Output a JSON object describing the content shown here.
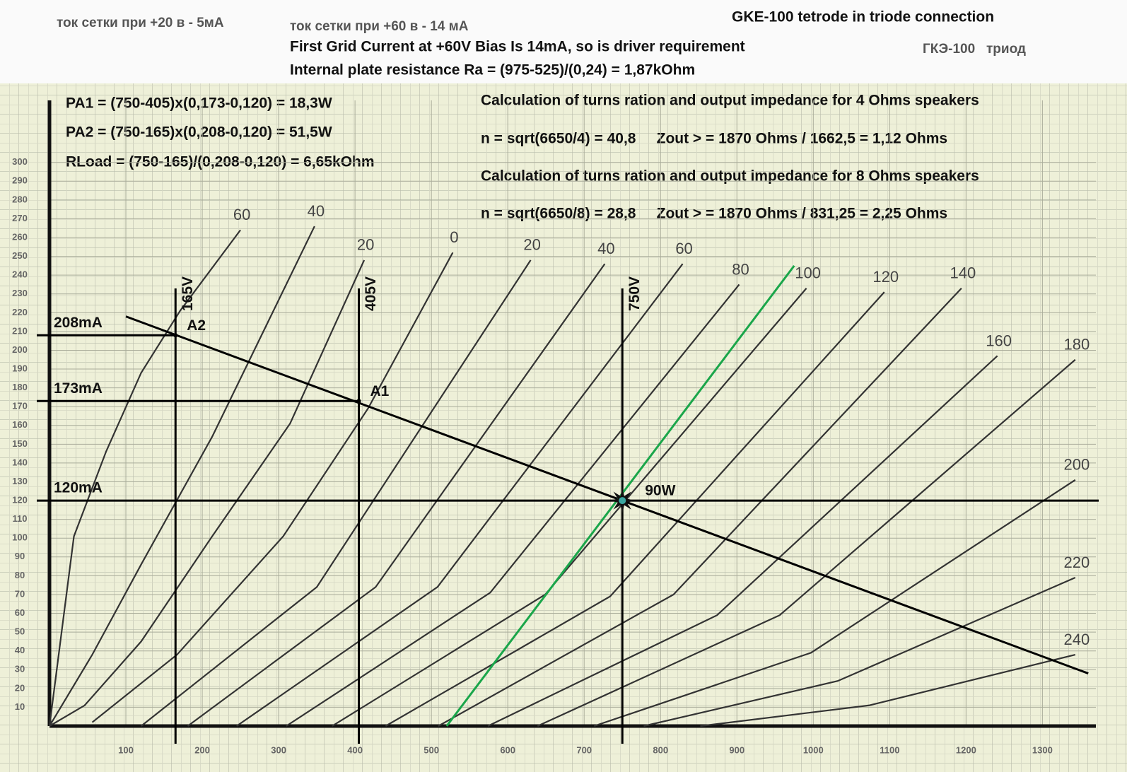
{
  "chart_data": {
    "type": "line",
    "title": "GKE-100 tetrode in triode connection",
    "annotations": [
      "ток сетки при +20 в - 5мА",
      "ток сетки при +60 в - 14 мА",
      "First Grid Current at +60V Bias Is 14mA, so is driver requirement",
      "ГКЭ-100   триод",
      "Internal plate resistance Ra = (975-525)/(0,24) = 1,87kOhm",
      "PA1 = (750-405)x(0,173-0,120) = 18,3W",
      "PA2 = (750-165)x(0,208-0,120) = 51,5W",
      "RLoad = (750-165)/(0,208-0,120) = 6,65kOhm",
      "Calculation of turns ration and output impedance for 4 Ohms speakers",
      "n = sqrt(6650/4) = 40,8     Zout > = 1870 Ohms / 1662,5 = 1,12 Ohms",
      "Calculation of turns ration and output impedance for 8 Ohms speakers",
      "n = sqrt(6650/8) = 28,8     Zout > = 1870 Ohms / 831,25 = 2,25 Ohms"
    ],
    "xlim": [
      0,
      1370
    ],
    "ylim": [
      0,
      333
    ],
    "xticks": [
      100,
      200,
      300,
      400,
      500,
      600,
      700,
      800,
      900,
      1000,
      1100,
      1200,
      1300
    ],
    "yticks": [
      10,
      20,
      30,
      40,
      50,
      60,
      70,
      80,
      90,
      100,
      110,
      120,
      130,
      140,
      150,
      160,
      170,
      180,
      190,
      200,
      210,
      220,
      230,
      240,
      250,
      260,
      270,
      280,
      290,
      300
    ],
    "grid": true,
    "series": [
      {
        "name": "60",
        "color": "#333333",
        "x": [
          0,
          32,
          74,
          120,
          171,
          250
        ],
        "values": [
          0,
          101,
          146,
          188,
          221,
          264
        ]
      },
      {
        "name": "40",
        "color": "#333333",
        "x": [
          0,
          56,
          120,
          213,
          347
        ],
        "values": [
          0,
          38,
          86,
          154,
          266
        ]
      },
      {
        "name": "20",
        "color": "#333333",
        "x": [
          0,
          46,
          120,
          213,
          315,
          412
        ],
        "values": [
          0,
          11,
          45,
          101,
          161,
          248
        ]
      },
      {
        "name": "0",
        "color": "#333333",
        "x": [
          56,
          167,
          306,
          417,
          528
        ],
        "values": [
          2,
          38,
          101,
          169,
          252
        ]
      },
      {
        "name": "20",
        "color": "#333333",
        "x": [
          120,
          350,
          630
        ],
        "values": [
          0,
          74,
          248
        ]
      },
      {
        "name": "40",
        "color": "#333333",
        "x": [
          181,
          427,
          727
        ],
        "values": [
          0,
          74,
          246
        ]
      },
      {
        "name": "60",
        "color": "#333333",
        "x": [
          245,
          508,
          829
        ],
        "values": [
          0,
          74,
          246
        ]
      },
      {
        "name": "80",
        "color": "#333333",
        "x": [
          310,
          577,
          903
        ],
        "values": [
          0,
          71,
          235
        ]
      },
      {
        "name": "100",
        "color": "#333333",
        "x": [
          370,
          649,
          991
        ],
        "values": [
          0,
          70,
          233
        ]
      },
      {
        "name": "120",
        "color": "#333333",
        "x": [
          440,
          734,
          1093
        ],
        "values": [
          0,
          69,
          231
        ]
      },
      {
        "name": "140",
        "color": "#333333",
        "x": [
          509,
          817,
          1194
        ],
        "values": [
          0,
          70,
          233
        ]
      },
      {
        "name": "160",
        "color": "#333333",
        "x": [
          574,
          874,
          1241
        ],
        "values": [
          0,
          59,
          197
        ]
      },
      {
        "name": "180",
        "color": "#333333",
        "x": [
          639,
          956,
          1343
        ],
        "values": [
          0,
          59,
          195
        ]
      },
      {
        "name": "200",
        "color": "#333333",
        "x": [
          713,
          997,
          1343
        ],
        "values": [
          0,
          39,
          131
        ]
      },
      {
        "name": "220",
        "color": "#333333",
        "x": [
          778,
          1032,
          1343
        ],
        "values": [
          0,
          24,
          79
        ]
      },
      {
        "name": "240",
        "color": "#333333",
        "x": [
          852,
          1073,
          1343
        ],
        "values": [
          0,
          11,
          38
        ]
      }
    ],
    "lines": [
      {
        "color": "#000000",
        "x": [
          100,
          1360
        ],
        "values": [
          218,
          28
        ]
      },
      {
        "color": "#1aa64a",
        "x": [
          520,
          975
        ],
        "values": [
          0,
          245
        ]
      }
    ],
    "vlines": [
      {
        "value": 165,
        "label": "165V"
      },
      {
        "value": 405,
        "label": "405V"
      },
      {
        "value": 750,
        "label": "750V"
      }
    ],
    "hlines": [
      {
        "value": 208,
        "label": "208mA"
      },
      {
        "value": 173,
        "label": "173mA"
      },
      {
        "value": 120,
        "label": "120mA"
      }
    ],
    "points": [
      {
        "x": 165,
        "y": 208,
        "label": "A2"
      },
      {
        "x": 405,
        "y": 173,
        "label": "A1"
      },
      {
        "x": 750,
        "y": 120,
        "label": "90W"
      }
    ]
  }
}
